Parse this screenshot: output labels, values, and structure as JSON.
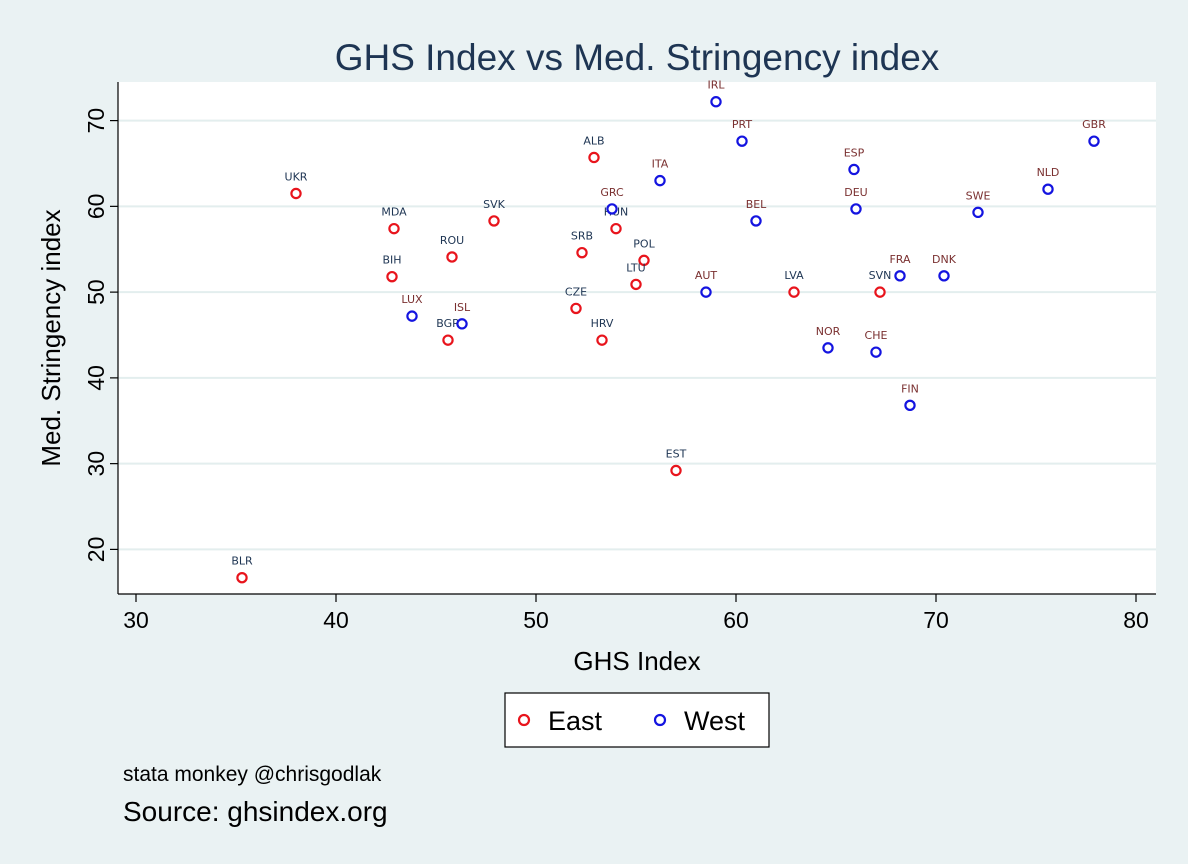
{
  "chart_data": {
    "type": "scatter",
    "title": "GHS Index vs Med. Stringency index",
    "xlabel": "GHS Index",
    "ylabel": "Med. Stringency index",
    "xlim": [
      29.1,
      81
    ],
    "ylim": [
      14.8,
      74.5
    ],
    "xticks": [
      30,
      40,
      50,
      60,
      70,
      80
    ],
    "yticks": [
      20,
      30,
      40,
      50,
      60,
      70
    ],
    "grid": "horizontal",
    "legend_placement": "bottom",
    "colors": {
      "East": "#e8141c",
      "West": "#1414e0"
    },
    "label_colors": {
      "East": "#1e3553",
      "West": "#7a3030"
    },
    "series": [
      {
        "name": "East",
        "points": [
          {
            "label": "UKR",
            "x": 38.0,
            "y": 61.5
          },
          {
            "label": "MDA",
            "x": 42.9,
            "y": 57.4
          },
          {
            "label": "ROU",
            "x": 45.8,
            "y": 54.1
          },
          {
            "label": "BIH",
            "x": 42.8,
            "y": 51.8
          },
          {
            "label": "BGR",
            "x": 45.6,
            "y": 44.4
          },
          {
            "label": "SVK",
            "x": 47.9,
            "y": 58.3
          },
          {
            "label": "ALB",
            "x": 52.9,
            "y": 65.7
          },
          {
            "label": "HUN",
            "x": 54.0,
            "y": 57.4
          },
          {
            "label": "SRB",
            "x": 52.3,
            "y": 54.6
          },
          {
            "label": "POL",
            "x": 55.4,
            "y": 53.7
          },
          {
            "label": "LTU",
            "x": 55.0,
            "y": 50.9
          },
          {
            "label": "CZE",
            "x": 52.0,
            "y": 48.1
          },
          {
            "label": "HRV",
            "x": 53.3,
            "y": 44.4
          },
          {
            "label": "EST",
            "x": 57.0,
            "y": 29.2
          },
          {
            "label": "LVA",
            "x": 62.9,
            "y": 50.0
          },
          {
            "label": "SVN",
            "x": 67.2,
            "y": 50.0
          },
          {
            "label": "BLR",
            "x": 35.3,
            "y": 16.7
          }
        ]
      },
      {
        "name": "West",
        "points": [
          {
            "label": "IRL",
            "x": 59.0,
            "y": 72.2
          },
          {
            "label": "PRT",
            "x": 60.3,
            "y": 67.6
          },
          {
            "label": "ITA",
            "x": 56.2,
            "y": 63.0
          },
          {
            "label": "GRC",
            "x": 53.8,
            "y": 59.7
          },
          {
            "label": "BEL",
            "x": 61.0,
            "y": 58.3
          },
          {
            "label": "ESP",
            "x": 65.9,
            "y": 64.3
          },
          {
            "label": "DEU",
            "x": 66.0,
            "y": 59.7
          },
          {
            "label": "SWE",
            "x": 72.1,
            "y": 59.3
          },
          {
            "label": "NLD",
            "x": 75.6,
            "y": 62.0
          },
          {
            "label": "GBR",
            "x": 77.9,
            "y": 67.6
          },
          {
            "label": "AUT",
            "x": 58.5,
            "y": 50.0
          },
          {
            "label": "FRA",
            "x": 68.2,
            "y": 51.9
          },
          {
            "label": "DNK",
            "x": 70.4,
            "y": 51.9
          },
          {
            "label": "LUX",
            "x": 43.8,
            "y": 47.2
          },
          {
            "label": "ISL",
            "x": 46.3,
            "y": 46.3
          },
          {
            "label": "NOR",
            "x": 64.6,
            "y": 43.5
          },
          {
            "label": "CHE",
            "x": 67.0,
            "y": 43.0
          },
          {
            "label": "FIN",
            "x": 68.7,
            "y": 36.8
          }
        ]
      }
    ]
  },
  "note": "stata monkey @chrisgodlak",
  "source": "Source: ghsindex.org"
}
